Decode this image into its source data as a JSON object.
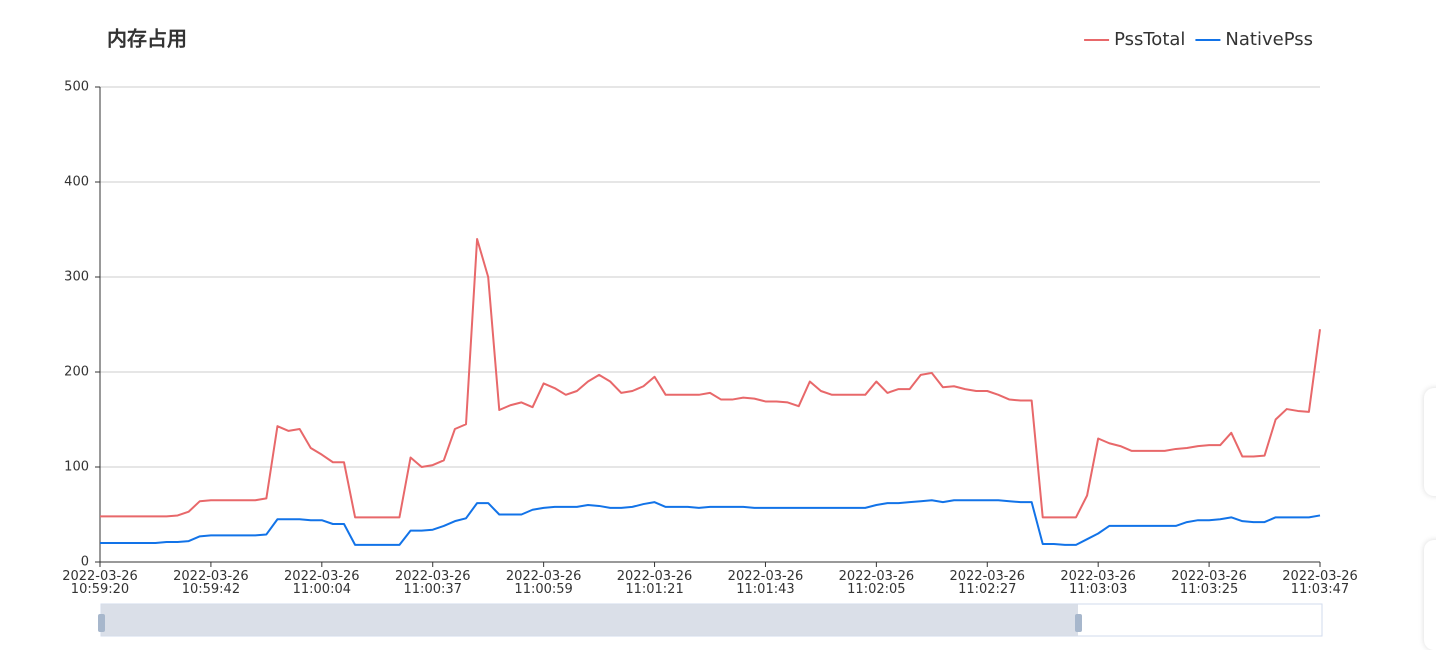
{
  "chart_data": {
    "type": "line",
    "title": "内存占用",
    "categories": [
      "2022-03-26 10:59:20",
      null,
      null,
      null,
      null,
      null,
      null,
      null,
      null,
      null,
      "2022-03-26 10:59:42",
      null,
      null,
      null,
      null,
      null,
      null,
      null,
      null,
      null,
      "2022-03-26 11:00:04",
      null,
      null,
      null,
      null,
      null,
      null,
      null,
      null,
      null,
      "2022-03-26 11:00:37",
      null,
      null,
      null,
      null,
      null,
      null,
      null,
      null,
      null,
      "2022-03-26 11:00:59",
      null,
      null,
      null,
      null,
      null,
      null,
      null,
      null,
      null,
      "2022-03-26 11:01:21",
      null,
      null,
      null,
      null,
      null,
      null,
      null,
      null,
      null,
      "2022-03-26 11:01:43",
      null,
      null,
      null,
      null,
      null,
      null,
      null,
      null,
      null,
      "2022-03-26 11:02:05",
      null,
      null,
      null,
      null,
      null,
      null,
      null,
      null,
      null,
      "2022-03-26 11:02:27",
      null,
      null,
      null,
      null,
      null,
      null,
      null,
      null,
      null,
      "2022-03-26 11:03:03",
      null,
      null,
      null,
      null,
      null,
      null,
      null,
      null,
      null,
      "2022-03-26 11:03:25",
      null,
      null,
      null,
      null,
      null,
      null,
      null,
      null,
      null,
      "2022-03-26 11:03:47"
    ],
    "series": [
      {
        "name": "PssTotal",
        "color": "#e8686a",
        "values": [
          48,
          48,
          48,
          48,
          48,
          48,
          48,
          49,
          53,
          64,
          65,
          65,
          65,
          65,
          65,
          67,
          143,
          138,
          140,
          120,
          113,
          105,
          105,
          47,
          47,
          47,
          47,
          47,
          110,
          100,
          102,
          107,
          140,
          145,
          340,
          300,
          160,
          165,
          168,
          163,
          188,
          183,
          176,
          180,
          190,
          197,
          190,
          178,
          180,
          185,
          195,
          176,
          176,
          176,
          176,
          178,
          171,
          171,
          173,
          172,
          169,
          169,
          168,
          164,
          190,
          180,
          176,
          176,
          176,
          176,
          190,
          178,
          182,
          182,
          197,
          199,
          184,
          185,
          182,
          180,
          180,
          176,
          171,
          170,
          170,
          47,
          47,
          47,
          47,
          70,
          130,
          125,
          122,
          117,
          117,
          117,
          117,
          119,
          120,
          122,
          123,
          123,
          136,
          111,
          111,
          112,
          150,
          161,
          159,
          158,
          245
        ]
      },
      {
        "name": "NativePss",
        "color": "#1273e8",
        "values": [
          20,
          20,
          20,
          20,
          20,
          20,
          21,
          21,
          22,
          27,
          28,
          28,
          28,
          28,
          28,
          29,
          45,
          45,
          45,
          44,
          44,
          40,
          40,
          18,
          18,
          18,
          18,
          18,
          33,
          33,
          34,
          38,
          43,
          46,
          62,
          62,
          50,
          50,
          50,
          55,
          57,
          58,
          58,
          58,
          60,
          59,
          57,
          57,
          58,
          61,
          63,
          58,
          58,
          58,
          57,
          58,
          58,
          58,
          58,
          57,
          57,
          57,
          57,
          57,
          57,
          57,
          57,
          57,
          57,
          57,
          60,
          62,
          62,
          63,
          64,
          65,
          63,
          65,
          65,
          65,
          65,
          65,
          64,
          63,
          63,
          19,
          19,
          18,
          18,
          24,
          30,
          38,
          38,
          38,
          38,
          38,
          38,
          38,
          42,
          44,
          44,
          45,
          47,
          43,
          42,
          42,
          47,
          47,
          47,
          47,
          49
        ]
      }
    ],
    "ylim": [
      0,
      500
    ],
    "yticks": [
      0,
      100,
      200,
      300,
      400,
      500
    ],
    "grid": true,
    "legend": "top-right"
  }
}
